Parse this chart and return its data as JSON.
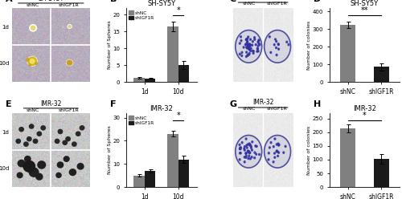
{
  "panel_B": {
    "title": "SH-SY5Y",
    "xlabel_vals": [
      "1d",
      "10d"
    ],
    "shNC_vals": [
      1.2,
      16.5
    ],
    "shIGF1R_vals": [
      1.1,
      5.0
    ],
    "shNC_err": [
      0.3,
      1.5
    ],
    "shIGF1R_err": [
      0.2,
      1.2
    ],
    "ylabel": "Number of Spheres",
    "ylim": [
      0,
      22
    ],
    "yticks": [
      0,
      5,
      10,
      15,
      20
    ],
    "sig_text": "*"
  },
  "panel_D": {
    "title": "SH-SY5Y",
    "xlabel_vals": [
      "shNC",
      "shIGF1R"
    ],
    "shNC_val": 325,
    "shIGF1R_val": 85,
    "shNC_err": 18,
    "shIGF1R_err": 22,
    "ylabel": "Number of colonies",
    "ylim": [
      0,
      420
    ],
    "yticks": [
      0,
      100,
      200,
      300,
      400
    ],
    "sig_text": "**"
  },
  "panel_F": {
    "title": "IMR-32",
    "xlabel_vals": [
      "1d",
      "10d"
    ],
    "shNC_vals": [
      5.0,
      23.0
    ],
    "shIGF1R_vals": [
      7.0,
      12.0
    ],
    "shNC_err": [
      0.5,
      1.2
    ],
    "shIGF1R_err": [
      0.8,
      1.5
    ],
    "ylabel": "Number of Spheres",
    "ylim": [
      0,
      32
    ],
    "yticks": [
      0,
      10,
      20,
      30
    ],
    "sig_text": "*"
  },
  "panel_H": {
    "title": "IMR-32",
    "xlabel_vals": [
      "shNC",
      "shIGF1R"
    ],
    "shNC_val": 215,
    "shIGF1R_val": 103,
    "shNC_err": 15,
    "shIGF1R_err": 18,
    "ylabel": "Number of colonies",
    "ylim": [
      0,
      270
    ],
    "yticks": [
      0,
      50,
      100,
      150,
      200,
      250
    ],
    "sig_text": "*"
  },
  "bar_color_shNC": "#808080",
  "bar_color_shIGF1R": "#1a1a1a",
  "legend_shNC": "shNC",
  "legend_shIGF1R": "shIGF1R",
  "row_labels": [
    "1d",
    "10d"
  ],
  "col_labels": [
    "shNC",
    "shIGF1R"
  ],
  "img_bg_A": "#b8b0aa",
  "img_bg_E": "#909090",
  "img_bg_C": "#d0ccd8",
  "img_bg_G": "#c8c4d0",
  "sphere_color_A_small": "#d4c060",
  "sphere_color_A_large": "#c8a820",
  "sphere_color_E": "#404040",
  "colony_circle_color": "#7070b8",
  "colony_dot_color": "#3030a0"
}
